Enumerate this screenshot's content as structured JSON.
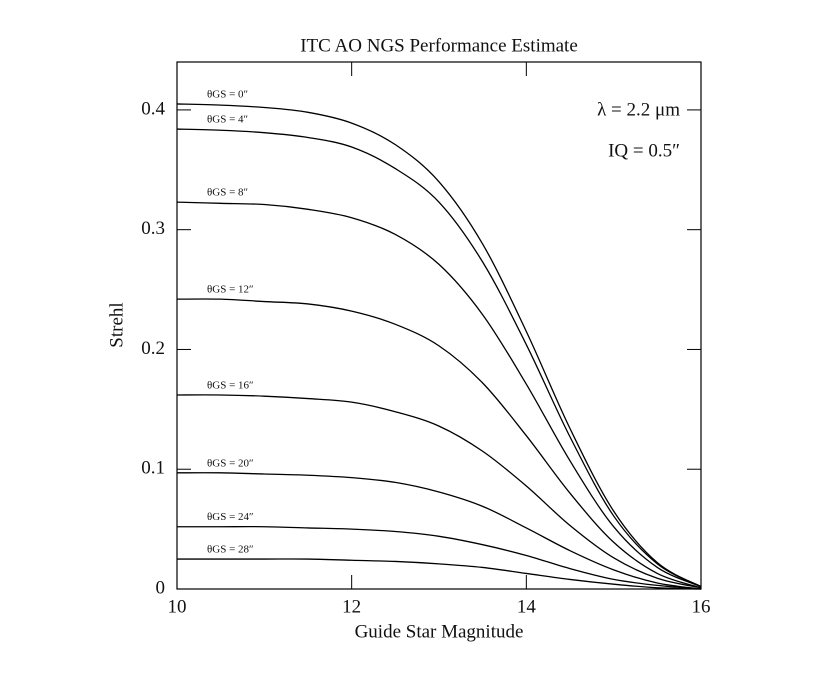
{
  "chart_data": {
    "type": "line",
    "title": "ITC AO NGS Performance Estimate",
    "x_label": "Guide Star Magnitude",
    "y_label": "Strehl",
    "annotations": [
      "λ = 2.2 μm",
      "IQ = 0.5″"
    ],
    "color": "#000000",
    "x": [
      10,
      10.5,
      11,
      11.5,
      12,
      12.5,
      13,
      13.5,
      14,
      14.5,
      15,
      15.5,
      16
    ],
    "series": [
      {
        "name": "θGS = 0″",
        "values": [
          0.405,
          0.404,
          0.402,
          0.398,
          0.389,
          0.371,
          0.34,
          0.288,
          0.215,
          0.134,
          0.065,
          0.022,
          0.002
        ]
      },
      {
        "name": "θGS = 4″",
        "values": [
          0.384,
          0.383,
          0.381,
          0.377,
          0.369,
          0.351,
          0.323,
          0.273,
          0.204,
          0.127,
          0.061,
          0.021,
          0.002
        ]
      },
      {
        "name": "θGS = 8″",
        "values": [
          0.323,
          0.322,
          0.321,
          0.317,
          0.31,
          0.296,
          0.271,
          0.229,
          0.171,
          0.107,
          0.052,
          0.018,
          0.002
        ]
      },
      {
        "name": "θGS = 12″",
        "values": [
          0.242,
          0.242,
          0.24,
          0.238,
          0.232,
          0.221,
          0.203,
          0.172,
          0.128,
          0.08,
          0.039,
          0.013,
          0.001
        ]
      },
      {
        "name": "θGS = 16″",
        "values": [
          0.162,
          0.162,
          0.161,
          0.159,
          0.156,
          0.148,
          0.136,
          0.115,
          0.086,
          0.053,
          0.026,
          0.009,
          0.001
        ]
      },
      {
        "name": "θGS = 20″",
        "values": [
          0.097,
          0.097,
          0.096,
          0.095,
          0.093,
          0.089,
          0.081,
          0.069,
          0.051,
          0.032,
          0.016,
          0.005,
          0
        ]
      },
      {
        "name": "θGS = 24″",
        "values": [
          0.052,
          0.052,
          0.052,
          0.051,
          0.05,
          0.048,
          0.044,
          0.037,
          0.028,
          0.017,
          0.008,
          0.003,
          0
        ]
      },
      {
        "name": "θGS = 28″",
        "values": [
          0.025,
          0.025,
          0.025,
          0.025,
          0.024,
          0.023,
          0.021,
          0.018,
          0.013,
          0.008,
          0.004,
          0.001,
          0
        ]
      }
    ],
    "xlim": [
      10,
      16
    ],
    "xticks": [
      10,
      12,
      14,
      16
    ],
    "ylim": [
      0,
      0.44
    ],
    "yticks": [
      0,
      0.1,
      0.2,
      0.3,
      0.4
    ]
  }
}
